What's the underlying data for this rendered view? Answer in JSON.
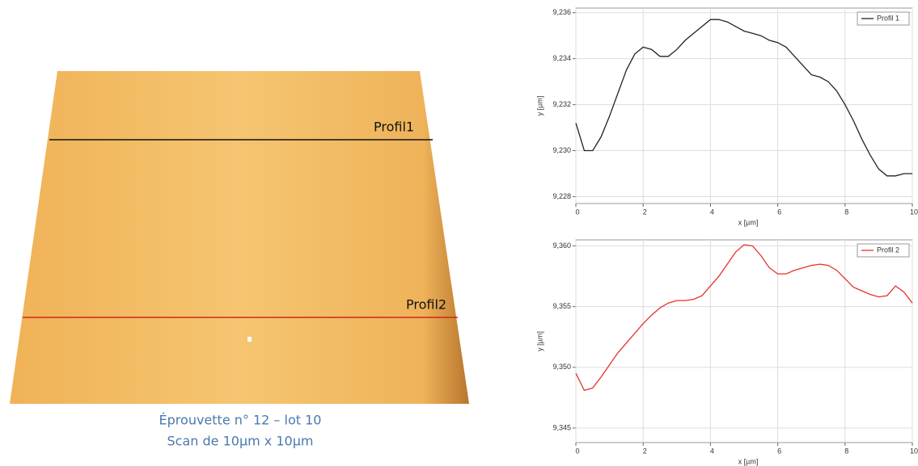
{
  "image": {
    "profile_labels": [
      "Profil1",
      "Profil2"
    ],
    "caption": [
      "Éprouvette n° 12 – lot 10",
      "Scan de 10µm x 10µm"
    ]
  },
  "chart_data": [
    {
      "type": "line",
      "xlabel": "x [µm]",
      "ylabel": "y [µm]",
      "grid": true,
      "legend": "upper right",
      "xlim": [
        0,
        10
      ],
      "xticks": [
        0,
        2,
        4,
        6,
        8,
        10
      ],
      "ylim": [
        9.2277,
        9.2362
      ],
      "yticks": [
        {
          "value": 9.228,
          "label": "9,228"
        },
        {
          "value": 9.23,
          "label": "9,230"
        },
        {
          "value": 9.232,
          "label": "9,232"
        },
        {
          "value": 9.234,
          "label": "9,234"
        },
        {
          "value": 9.236,
          "label": "9,236"
        }
      ],
      "x": [
        0,
        0.25,
        0.5,
        0.75,
        1,
        1.25,
        1.5,
        1.75,
        2,
        2.25,
        2.5,
        2.75,
        3,
        3.25,
        3.5,
        3.75,
        4,
        4.25,
        4.5,
        4.75,
        5,
        5.25,
        5.5,
        5.75,
        6,
        6.25,
        6.5,
        6.75,
        7,
        7.25,
        7.5,
        7.75,
        8,
        8.25,
        8.5,
        8.75,
        9,
        9.25,
        9.5,
        9.75,
        10
      ],
      "series": [
        {
          "name": "Profil 1",
          "color": "#222222",
          "values": [
            9.2312,
            9.23,
            9.23,
            9.2306,
            9.2315,
            9.2325,
            9.2335,
            9.2342,
            9.2345,
            9.2344,
            9.2341,
            9.2341,
            9.2344,
            9.2348,
            9.2351,
            9.2354,
            9.2357,
            9.2357,
            9.2356,
            9.2354,
            9.2352,
            9.2351,
            9.235,
            9.2348,
            9.2347,
            9.2345,
            9.2341,
            9.2337,
            9.2333,
            9.2332,
            9.233,
            9.2326,
            9.232,
            9.2313,
            9.2305,
            9.2298,
            9.2292,
            9.2289,
            9.2289,
            9.229,
            9.229
          ]
        }
      ]
    },
    {
      "type": "line",
      "xlabel": "x [µm]",
      "ylabel": "y [µm]",
      "grid": true,
      "legend": "upper right",
      "xlim": [
        0,
        10
      ],
      "xticks": [
        0,
        2,
        4,
        6,
        8,
        10
      ],
      "ylim": [
        9.3438,
        9.3605
      ],
      "yticks": [
        {
          "value": 9.345,
          "label": "9,345"
        },
        {
          "value": 9.35,
          "label": "9,350"
        },
        {
          "value": 9.355,
          "label": "9,355"
        },
        {
          "value": 9.36,
          "label": "9,360"
        }
      ],
      "x": [
        0,
        0.25,
        0.5,
        0.75,
        1,
        1.25,
        1.5,
        1.75,
        2,
        2.25,
        2.5,
        2.75,
        3,
        3.25,
        3.5,
        3.75,
        4,
        4.25,
        4.5,
        4.75,
        5,
        5.25,
        5.5,
        5.75,
        6,
        6.25,
        6.5,
        6.75,
        7,
        7.25,
        7.5,
        7.75,
        8,
        8.25,
        8.5,
        8.75,
        9,
        9.25,
        9.5,
        9.75,
        10
      ],
      "series": [
        {
          "name": "Profil 2",
          "color": "#e8312a",
          "values": [
            9.3495,
            9.3481,
            9.3483,
            9.3492,
            9.3502,
            9.3512,
            9.352,
            9.3528,
            9.3536,
            9.3543,
            9.3549,
            9.3553,
            9.3555,
            9.3555,
            9.3556,
            9.3559,
            9.3567,
            9.3575,
            9.3585,
            9.3595,
            9.3601,
            9.36,
            9.3592,
            9.3582,
            9.3577,
            9.3577,
            9.358,
            9.3582,
            9.3584,
            9.3585,
            9.3584,
            9.358,
            9.3573,
            9.3566,
            9.3563,
            9.356,
            9.3558,
            9.3559,
            9.3567,
            9.3562,
            9.3553
          ]
        }
      ]
    }
  ]
}
